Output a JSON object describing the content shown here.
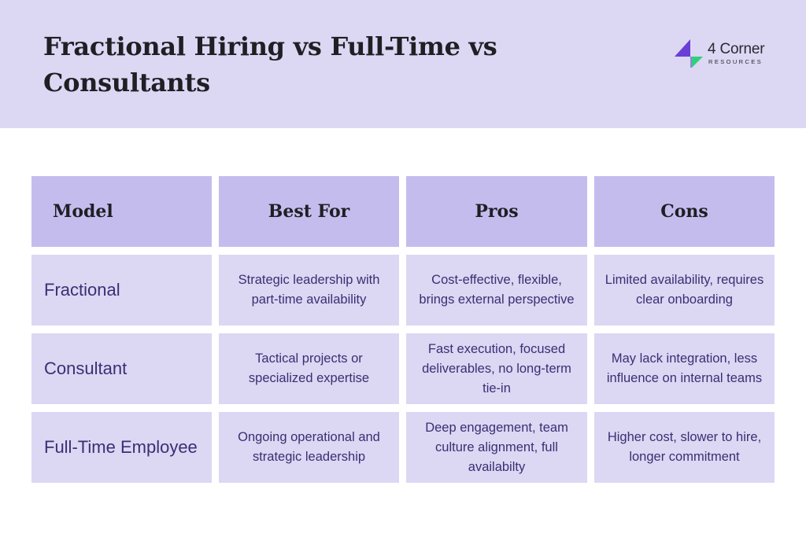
{
  "header": {
    "title": "Fractional Hiring vs Full-Time vs Consultants",
    "logo": {
      "name": "4 Corner",
      "subtitle": "RESOURCES"
    }
  },
  "table": {
    "columns": [
      "Model",
      "Best For",
      "Pros",
      "Cons"
    ],
    "rows": [
      {
        "model": "Fractional",
        "best_for": "Strategic leadership with part-time availability",
        "pros": "Cost-effective, flexible, brings external perspective",
        "cons": "Limited availability, requires clear onboarding"
      },
      {
        "model": "Consultant",
        "best_for": "Tactical projects or specialized expertise",
        "pros": "Fast execution, focused deliverables, no long-term tie-in",
        "cons": "May lack integration, less influence on internal teams"
      },
      {
        "model": "Full-Time Employee",
        "best_for": "Ongoing operational and strategic leadership",
        "pros": "Deep engagement, team culture alignment, full availabilty",
        "cons": "Higher cost, slower to hire, longer commitment"
      }
    ]
  },
  "colors": {
    "header_bg": "#dcd7f3",
    "table_header_bg": "#c5bcee",
    "cell_bg": "#dcd7f3",
    "cell_text": "#3a2f73",
    "logo_purple": "#6a3fd6",
    "logo_green": "#2fd07a"
  }
}
